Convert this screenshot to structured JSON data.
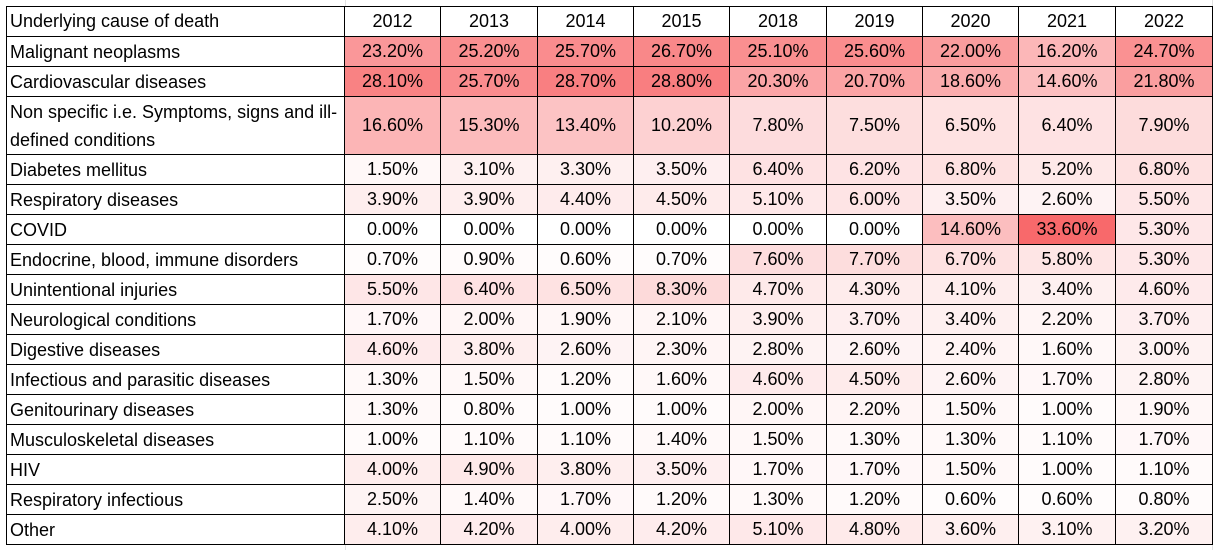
{
  "table": {
    "header_label": "Underlying cause of death",
    "years": [
      "2012",
      "2013",
      "2014",
      "2015",
      "2018",
      "2019",
      "2020",
      "2021",
      "2022"
    ],
    "rows": [
      {
        "cause": "Malignant neoplasms",
        "values": [
          "23.20%",
          "25.20%",
          "25.70%",
          "26.70%",
          "25.10%",
          "25.60%",
          "22.00%",
          "16.20%",
          "24.70%"
        ]
      },
      {
        "cause": "Cardiovascular diseases",
        "values": [
          "28.10%",
          "25.70%",
          "28.70%",
          "28.80%",
          "20.30%",
          "20.70%",
          "18.60%",
          "14.60%",
          "21.80%"
        ]
      },
      {
        "cause": "Non specific i.e. Symptoms, signs and ill-defined conditions",
        "values": [
          "16.60%",
          "15.30%",
          "13.40%",
          "10.20%",
          "7.80%",
          "7.50%",
          "6.50%",
          "6.40%",
          "7.90%"
        ]
      },
      {
        "cause": "Diabetes mellitus",
        "values": [
          "1.50%",
          "3.10%",
          "3.30%",
          "3.50%",
          "6.40%",
          "6.20%",
          "6.80%",
          "5.20%",
          "6.80%"
        ]
      },
      {
        "cause": "Respiratory diseases",
        "values": [
          "3.90%",
          "3.90%",
          "4.40%",
          "4.50%",
          "5.10%",
          "6.00%",
          "3.50%",
          "2.60%",
          "5.50%"
        ]
      },
      {
        "cause": "COVID",
        "values": [
          "0.00%",
          "0.00%",
          "0.00%",
          "0.00%",
          "0.00%",
          "0.00%",
          "14.60%",
          "33.60%",
          "5.30%"
        ]
      },
      {
        "cause": "Endocrine, blood, immune disorders",
        "values": [
          "0.70%",
          "0.90%",
          "0.60%",
          "0.70%",
          "7.60%",
          "7.70%",
          "6.70%",
          "5.80%",
          "5.30%"
        ]
      },
      {
        "cause": "Unintentional injuries",
        "values": [
          "5.50%",
          "6.40%",
          "6.50%",
          "8.30%",
          "4.70%",
          "4.30%",
          "4.10%",
          "3.40%",
          "4.60%"
        ]
      },
      {
        "cause": "Neurological conditions",
        "values": [
          "1.70%",
          "2.00%",
          "1.90%",
          "2.10%",
          "3.90%",
          "3.70%",
          "3.40%",
          "2.20%",
          "3.70%"
        ]
      },
      {
        "cause": "Digestive diseases",
        "values": [
          "4.60%",
          "3.80%",
          "2.60%",
          "2.30%",
          "2.80%",
          "2.60%",
          "2.40%",
          "1.60%",
          "3.00%"
        ]
      },
      {
        "cause": "Infectious and parasitic diseases",
        "values": [
          "1.30%",
          "1.50%",
          "1.20%",
          "1.60%",
          "4.60%",
          "4.50%",
          "2.60%",
          "1.70%",
          "2.80%"
        ]
      },
      {
        "cause": "Genitourinary diseases",
        "values": [
          "1.30%",
          "0.80%",
          "1.00%",
          "1.00%",
          "2.00%",
          "2.20%",
          "1.50%",
          "1.00%",
          "1.90%"
        ]
      },
      {
        "cause": "Musculoskeletal diseases",
        "values": [
          "1.00%",
          "1.10%",
          "1.10%",
          "1.40%",
          "1.50%",
          "1.30%",
          "1.30%",
          "1.10%",
          "1.70%"
        ]
      },
      {
        "cause": "HIV",
        "values": [
          "4.00%",
          "4.90%",
          "3.80%",
          "3.50%",
          "1.70%",
          "1.70%",
          "1.50%",
          "1.00%",
          "1.10%"
        ]
      },
      {
        "cause": "Respiratory infectious",
        "values": [
          "2.50%",
          "1.40%",
          "1.70%",
          "1.20%",
          "1.30%",
          "1.20%",
          "0.60%",
          "0.60%",
          "0.80%"
        ]
      },
      {
        "cause": "Other",
        "values": [
          "4.10%",
          "4.20%",
          "4.00%",
          "4.20%",
          "5.10%",
          "4.80%",
          "3.60%",
          "3.10%",
          "3.20%"
        ]
      }
    ]
  },
  "colors": {
    "scale_low": "#ffffff",
    "scale_high": "#f8696b",
    "border": "#000000",
    "gridline": "#e1e1e1"
  }
}
